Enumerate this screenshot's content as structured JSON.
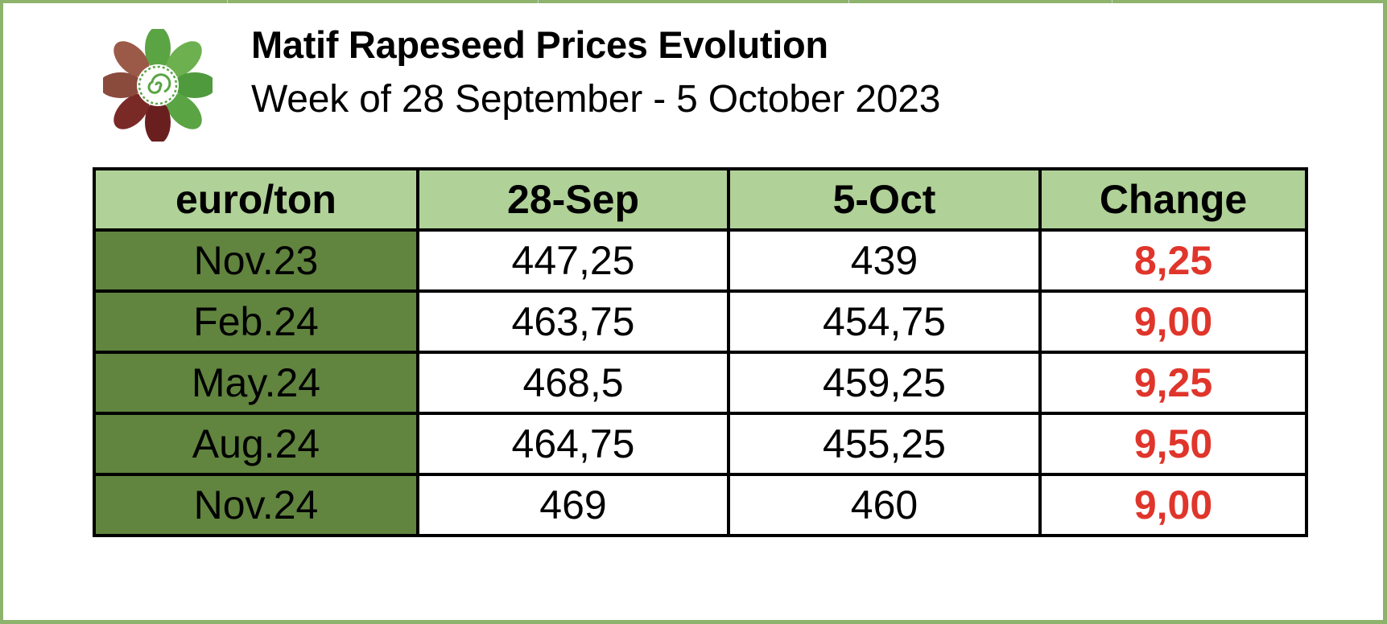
{
  "header": {
    "title": "Matif Rapeseed Prices Evolution",
    "subtitle": "Week of 28 September - 5 October 2023",
    "logo_icon": "flower-logo-icon"
  },
  "colors": {
    "frame_border": "#8db36c",
    "header_fill": "#b0d197",
    "row_label_fill": "#61843f",
    "change_text": "#e0352b"
  },
  "chart_data": {
    "type": "table",
    "columns": [
      "euro/ton",
      "28-Sep",
      "5-Oct",
      "Change"
    ],
    "rows": [
      [
        "Nov.23",
        "447,25",
        "439",
        "8,25"
      ],
      [
        "Feb.24",
        "463,75",
        "454,75",
        "9,00"
      ],
      [
        "May.24",
        "468,5",
        "459,25",
        "9,25"
      ],
      [
        "Aug.24",
        "464,75",
        "455,25",
        "9,50"
      ],
      [
        "Nov.24",
        "469",
        "460",
        "9,00"
      ]
    ]
  }
}
